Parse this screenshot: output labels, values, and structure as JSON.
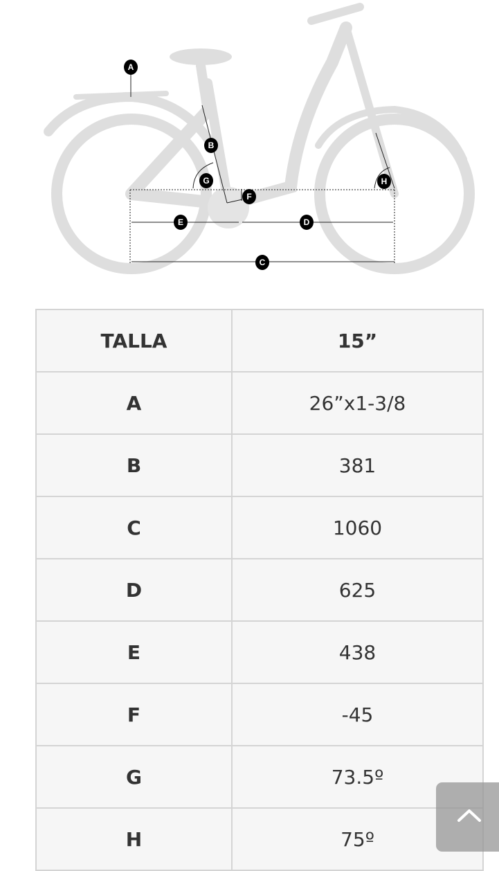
{
  "diagram": {
    "labels": [
      "A",
      "B",
      "C",
      "D",
      "E",
      "F",
      "G",
      "H"
    ]
  },
  "table": {
    "header": {
      "key": "TALLA",
      "value": "15”"
    },
    "rows": [
      {
        "key": "A",
        "value": "26”x1-3/8"
      },
      {
        "key": "B",
        "value": "381"
      },
      {
        "key": "C",
        "value": "1060"
      },
      {
        "key": "D",
        "value": "625"
      },
      {
        "key": "E",
        "value": "438"
      },
      {
        "key": "F",
        "value": "-45"
      },
      {
        "key": "G",
        "value": "73.5º"
      },
      {
        "key": "H",
        "value": "75º"
      }
    ]
  },
  "colors": {
    "bike": "#dcdcdc",
    "border": "#d4d4d4",
    "cell_bg": "#f6f6f6",
    "text": "#333333"
  }
}
